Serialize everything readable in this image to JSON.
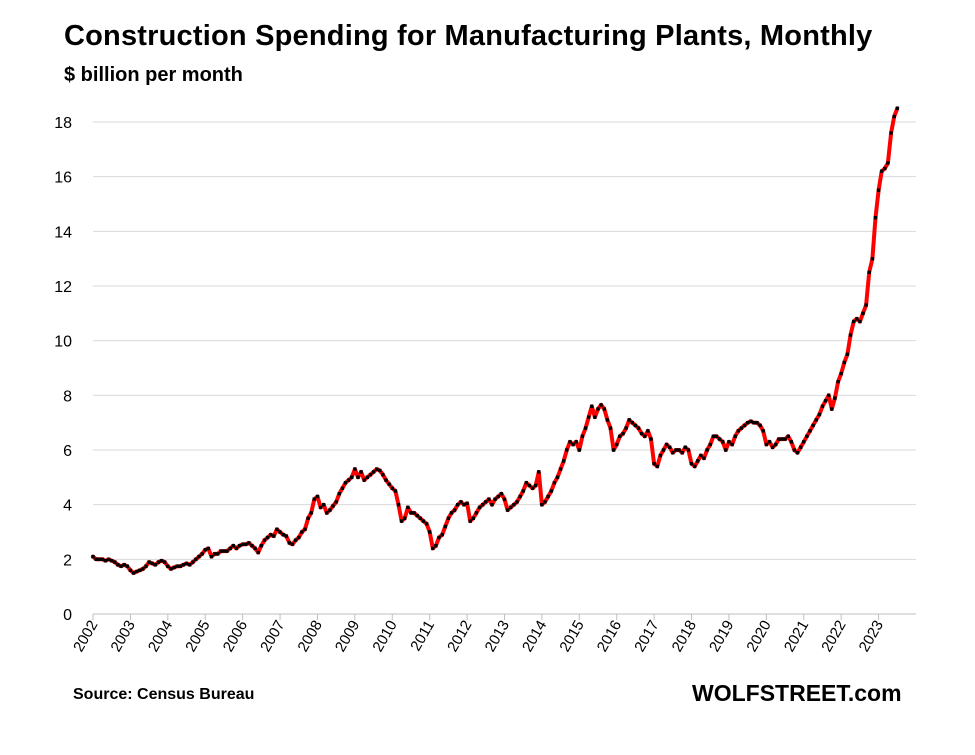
{
  "chart_data": {
    "type": "line",
    "title": "Construction Spending for Manufacturing Plants, Monthly",
    "subtitle": "$ billion per month",
    "source": "Source: Census Bureau",
    "brand": "WOLFSTREET.com",
    "xlabel": "",
    "ylabel": "",
    "ylim": [
      0,
      18
    ],
    "yticks": [
      0,
      2,
      4,
      6,
      8,
      10,
      12,
      14,
      16,
      18
    ],
    "xticks": [
      "2002",
      "2003",
      "2004",
      "2005",
      "2006",
      "2007",
      "2008",
      "2009",
      "2010",
      "2011",
      "2012",
      "2013",
      "2014",
      "2015",
      "2016",
      "2017",
      "2018",
      "2019",
      "2020",
      "2021",
      "2022",
      "2023"
    ],
    "grid": "horizontal",
    "line_color": "#ff0000",
    "marker_color": "#000000",
    "x_start": "2002-01",
    "frequency": "monthly",
    "values": [
      2.1,
      2.0,
      2.0,
      2.0,
      1.95,
      2.0,
      1.95,
      1.9,
      1.8,
      1.75,
      1.8,
      1.75,
      1.6,
      1.5,
      1.55,
      1.6,
      1.65,
      1.75,
      1.9,
      1.85,
      1.8,
      1.9,
      1.95,
      1.9,
      1.75,
      1.65,
      1.7,
      1.75,
      1.75,
      1.8,
      1.85,
      1.8,
      1.9,
      2.0,
      2.1,
      2.2,
      2.35,
      2.4,
      2.1,
      2.2,
      2.2,
      2.3,
      2.3,
      2.3,
      2.4,
      2.5,
      2.4,
      2.5,
      2.55,
      2.55,
      2.6,
      2.5,
      2.4,
      2.25,
      2.5,
      2.7,
      2.8,
      2.9,
      2.85,
      3.1,
      3.0,
      2.9,
      2.85,
      2.6,
      2.55,
      2.7,
      2.8,
      3.0,
      3.1,
      3.5,
      3.7,
      4.2,
      4.3,
      3.9,
      4.0,
      3.7,
      3.8,
      3.95,
      4.1,
      4.4,
      4.6,
      4.8,
      4.9,
      5.0,
      5.3,
      5.0,
      5.2,
      4.9,
      5.0,
      5.1,
      5.2,
      5.3,
      5.25,
      5.1,
      4.9,
      4.75,
      4.6,
      4.5,
      4.0,
      3.4,
      3.5,
      3.9,
      3.7,
      3.7,
      3.6,
      3.5,
      3.4,
      3.3,
      3.0,
      2.4,
      2.5,
      2.8,
      2.9,
      3.2,
      3.5,
      3.7,
      3.8,
      4.0,
      4.1,
      4.0,
      4.05,
      3.4,
      3.5,
      3.7,
      3.9,
      4.0,
      4.1,
      4.2,
      4.0,
      4.2,
      4.3,
      4.4,
      4.2,
      3.8,
      3.9,
      4.0,
      4.1,
      4.3,
      4.5,
      4.8,
      4.7,
      4.6,
      4.7,
      5.2,
      4.0,
      4.1,
      4.3,
      4.5,
      4.8,
      5.0,
      5.3,
      5.6,
      6.0,
      6.3,
      6.2,
      6.3,
      6.0,
      6.5,
      6.8,
      7.2,
      7.6,
      7.2,
      7.5,
      7.65,
      7.5,
      7.1,
      6.8,
      6.0,
      6.2,
      6.5,
      6.6,
      6.8,
      7.1,
      7.0,
      6.9,
      6.8,
      6.6,
      6.5,
      6.7,
      6.4,
      5.5,
      5.4,
      5.8,
      6.0,
      6.2,
      6.1,
      5.9,
      6.0,
      6.0,
      5.9,
      6.1,
      6.0,
      5.5,
      5.4,
      5.6,
      5.8,
      5.7,
      6.0,
      6.2,
      6.5,
      6.5,
      6.4,
      6.3,
      6.0,
      6.3,
      6.2,
      6.5,
      6.7,
      6.8,
      6.9,
      7.0,
      7.05,
      7.0,
      7.0,
      6.9,
      6.7,
      6.2,
      6.3,
      6.1,
      6.2,
      6.4,
      6.4,
      6.4,
      6.5,
      6.3,
      6.0,
      5.9,
      6.1,
      6.3,
      6.5,
      6.7,
      6.9,
      7.1,
      7.3,
      7.6,
      7.8,
      8.0,
      7.5,
      7.9,
      8.5,
      8.8,
      9.2,
      9.5,
      10.2,
      10.7,
      10.8,
      10.7,
      11.0,
      11.3,
      12.5,
      13.0,
      14.5,
      15.5,
      16.2,
      16.3,
      16.5,
      17.6,
      18.2,
      18.5
    ]
  }
}
